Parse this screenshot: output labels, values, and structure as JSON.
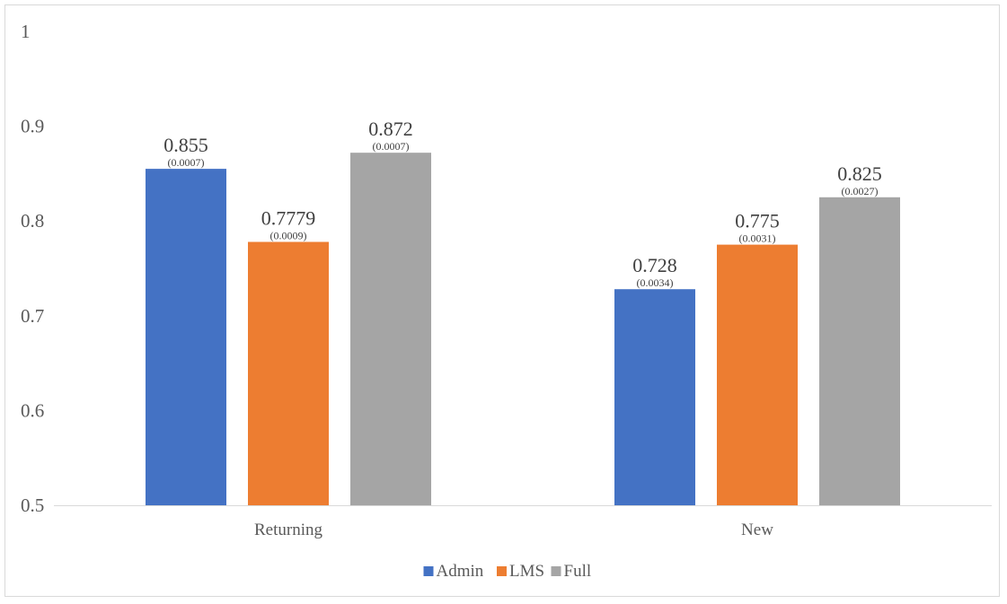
{
  "chart_data": {
    "type": "bar",
    "title": "",
    "xlabel": "",
    "ylabel": "",
    "categories": [
      "Returning",
      "New"
    ],
    "ylim": [
      0.5,
      1
    ],
    "yticks": [
      "0.5",
      "0.6",
      "0.7",
      "0.8",
      "0.9",
      "1"
    ],
    "grid": false,
    "legend_position": "bottom",
    "series": [
      {
        "name": "Admin",
        "color": "#4472C4",
        "values": [
          0.855,
          0.728
        ],
        "value_labels": [
          "0.855",
          "0.728"
        ],
        "se_labels": [
          "(0.0007)",
          "(0.0034)"
        ]
      },
      {
        "name": "LMS",
        "color": "#ED7D31",
        "values": [
          0.7779,
          0.775
        ],
        "value_labels": [
          "0.7779",
          "0.775"
        ],
        "se_labels": [
          "(0.0009)",
          "(0.0031)"
        ]
      },
      {
        "name": "Full",
        "color": "#A5A5A5",
        "values": [
          0.872,
          0.825
        ],
        "value_labels": [
          "0.872",
          "0.825"
        ],
        "se_labels": [
          "(0.0007)",
          "(0.0027)"
        ]
      }
    ]
  }
}
